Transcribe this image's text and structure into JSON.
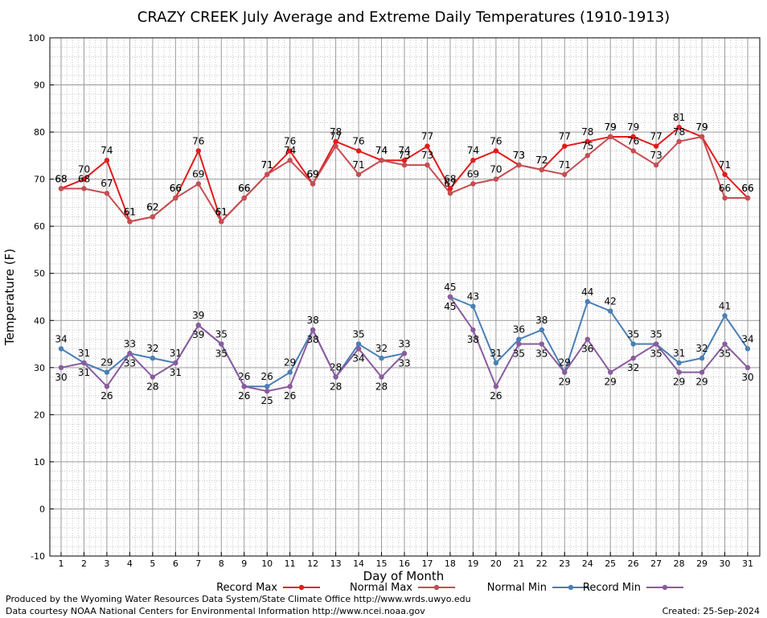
{
  "chart_data": {
    "type": "line",
    "title": "CRAZY CREEK July Average and Extreme Daily Temperatures (1910-1913)",
    "xlabel": "Day of Month",
    "ylabel": "Temperature (F)",
    "ylim": [
      -10,
      100
    ],
    "yticks": [
      -10,
      0,
      10,
      20,
      30,
      40,
      50,
      60,
      70,
      80,
      90,
      100
    ],
    "x": [
      1,
      2,
      3,
      4,
      5,
      6,
      7,
      8,
      9,
      10,
      11,
      12,
      13,
      14,
      15,
      16,
      17,
      18,
      19,
      20,
      21,
      22,
      23,
      24,
      25,
      26,
      27,
      28,
      29,
      30,
      31
    ],
    "grid": true,
    "legend_position": "bottom",
    "series": [
      {
        "name": "Record Max",
        "color": "#e41a1c",
        "labels": "above",
        "values": [
          68,
          70,
          74,
          61,
          62,
          66,
          76,
          61,
          66,
          71,
          76,
          69,
          78,
          76,
          74,
          74,
          77,
          68,
          74,
          76,
          73,
          72,
          77,
          78,
          79,
          79,
          77,
          81,
          79,
          71,
          66
        ]
      },
      {
        "name": "Normal Max",
        "color": "#c44e52",
        "labels": "above",
        "values": [
          68,
          68,
          67,
          61,
          62,
          66,
          69,
          61,
          66,
          71,
          74,
          69,
          77,
          71,
          74,
          73,
          73,
          67,
          69,
          70,
          73,
          72,
          71,
          75,
          79,
          76,
          73,
          78,
          79,
          66,
          66
        ]
      },
      {
        "name": "Normal Min",
        "color": "#4a7fb5",
        "labels": "above",
        "values": [
          34,
          31,
          29,
          33,
          32,
          31,
          39,
          35,
          26,
          26,
          29,
          38,
          28,
          35,
          32,
          33,
          null,
          45,
          43,
          31,
          36,
          38,
          29,
          44,
          42,
          35,
          35,
          31,
          32,
          41,
          34
        ]
      },
      {
        "name": "Record Min",
        "color": "#8a5c9e",
        "labels": "below",
        "values": [
          30,
          31,
          26,
          33,
          28,
          31,
          39,
          35,
          26,
          25,
          26,
          38,
          28,
          34,
          28,
          33,
          null,
          45,
          38,
          26,
          35,
          35,
          29,
          36,
          29,
          32,
          35,
          29,
          29,
          35,
          30
        ]
      }
    ]
  },
  "footer": {
    "produced_by": "Produced by the Wyoming Water Resources Data System/State Climate Office http://www.wrds.uwyo.edu",
    "courtesy": "Data courtesy NOAA National Centers for Environmental Information http://www.ncei.noaa.gov",
    "created": "Created:  25-Sep-2024"
  }
}
